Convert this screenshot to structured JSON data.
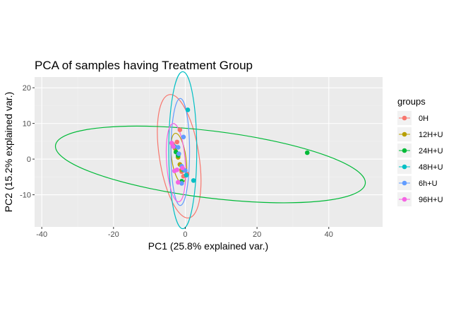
{
  "chart_data": {
    "type": "scatter",
    "title": "PCA of samples having Treatment Group",
    "xlabel": "PC1 (25.8% explained var.)",
    "ylabel": "PC2 (15.2% explained var.)",
    "xlim": [
      -42,
      55
    ],
    "ylim": [
      -19,
      23
    ],
    "x_ticks": [
      -40,
      -20,
      0,
      20,
      40
    ],
    "y_ticks": [
      -10,
      0,
      10,
      20
    ],
    "grid": true,
    "legend_title": "groups",
    "legend_position": "right",
    "series": [
      {
        "name": "0H",
        "color": "#F8766D",
        "points": [
          [
            -1.5,
            8.2
          ],
          [
            -2.3,
            4.8
          ],
          [
            -3.5,
            4.2
          ],
          [
            -1.0,
            -3.5
          ],
          [
            0.5,
            -4.2
          ],
          [
            -0.5,
            -4.8
          ]
        ],
        "ellipse": {
          "cx": -1.7,
          "cy": 0.8,
          "rx": 5.5,
          "ry": 17.5,
          "angle": -9
        }
      },
      {
        "name": "12H+U",
        "color": "#B79F00",
        "points": [
          [
            -2.8,
            3.0
          ],
          [
            -2.0,
            0.5
          ],
          [
            -1.5,
            -1.5
          ],
          [
            -1.0,
            -3.0
          ]
        ],
        "ellipse": {
          "cx": -1.8,
          "cy": 0.3,
          "rx": 2.0,
          "ry": 7.0,
          "angle": -8
        }
      },
      {
        "name": "24H+U",
        "color": "#00BA38",
        "points": [
          [
            34.0,
            1.8
          ],
          [
            -2.6,
            2.0
          ],
          [
            -1.0,
            -6.2
          ],
          [
            -2.0,
            1.0
          ]
        ],
        "ellipse": {
          "cx": 7.0,
          "cy": -1.5,
          "rx": 43.5,
          "ry": 9.4,
          "angle": 7
        }
      },
      {
        "name": "48H+U",
        "color": "#00BFC4",
        "points": [
          [
            0.7,
            13.8
          ],
          [
            -3.0,
            3.5
          ],
          [
            2.3,
            -6.0
          ],
          [
            -0.5,
            -3.0
          ],
          [
            0.3,
            -4.5
          ]
        ],
        "ellipse": {
          "cx": -0.7,
          "cy": 2.5,
          "rx": 3.9,
          "ry": 22.0,
          "angle": 0
        }
      },
      {
        "name": "6h+U",
        "color": "#619CFF",
        "points": [
          [
            -0.5,
            6.2
          ],
          [
            -2.0,
            3.3
          ],
          [
            -1.8,
            1.5
          ],
          [
            -1.0,
            -2.0
          ],
          [
            0.0,
            -3.2
          ],
          [
            -1.0,
            -6.8
          ]
        ],
        "ellipse": {
          "cx": -1.4,
          "cy": 2.0,
          "rx": 2.6,
          "ry": 15.0,
          "angle": 0
        }
      },
      {
        "name": "96H+U",
        "color": "#F564E3",
        "points": [
          [
            -3.8,
            4.5
          ],
          [
            -3.0,
            -3.3
          ],
          [
            -2.3,
            -3.0
          ],
          [
            -2.0,
            -6.5
          ],
          [
            -0.8,
            -2.5
          ],
          [
            -3.3,
            3.5
          ]
        ],
        "ellipse": {
          "cx": -2.6,
          "cy": -1.0,
          "rx": 2.6,
          "ry": 11.0,
          "angle": -4
        }
      }
    ]
  }
}
